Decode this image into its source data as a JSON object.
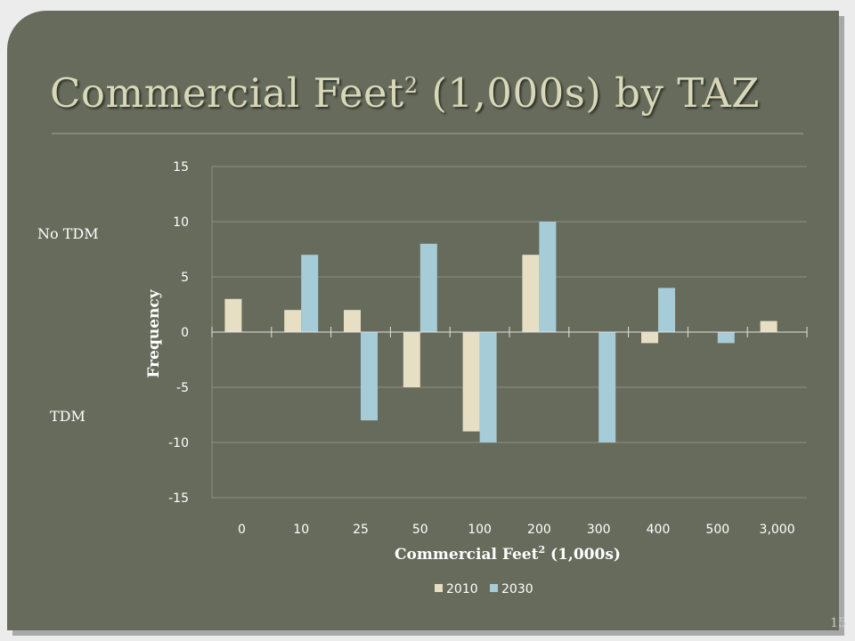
{
  "slide": {
    "title": "Commercial Feet",
    "title_sup": "2",
    "title_rest": " (1,000s) by TAZ",
    "label_positive": "No TDM",
    "label_negative": "TDM",
    "page_number": "15"
  },
  "colors": {
    "background": "#676b5c",
    "series_2010": "#e7dfc4",
    "series_2030": "#a6ccd8",
    "gridline": "#8c8f82"
  },
  "chart_data": {
    "type": "bar",
    "categories": [
      "0",
      "10",
      "25",
      "50",
      "100",
      "200",
      "300",
      "400",
      "500",
      "3,000"
    ],
    "series": [
      {
        "name": "2010",
        "values": [
          3,
          2,
          2,
          -5,
          -9,
          7,
          0,
          -1,
          0,
          1
        ]
      },
      {
        "name": "2030",
        "values": [
          0,
          7,
          -8,
          8,
          -10,
          10,
          -10,
          4,
          -1,
          0
        ]
      }
    ],
    "xlabel": "Commercial Feet",
    "xlabel_sup": "2",
    "xlabel_rest": " (1,000s)",
    "ylabel": "Frequency",
    "ylim": [
      -15,
      15
    ],
    "yticks": [
      15,
      10,
      5,
      0,
      -5,
      -10,
      -15
    ],
    "grid": true,
    "legend_position": "bottom"
  }
}
